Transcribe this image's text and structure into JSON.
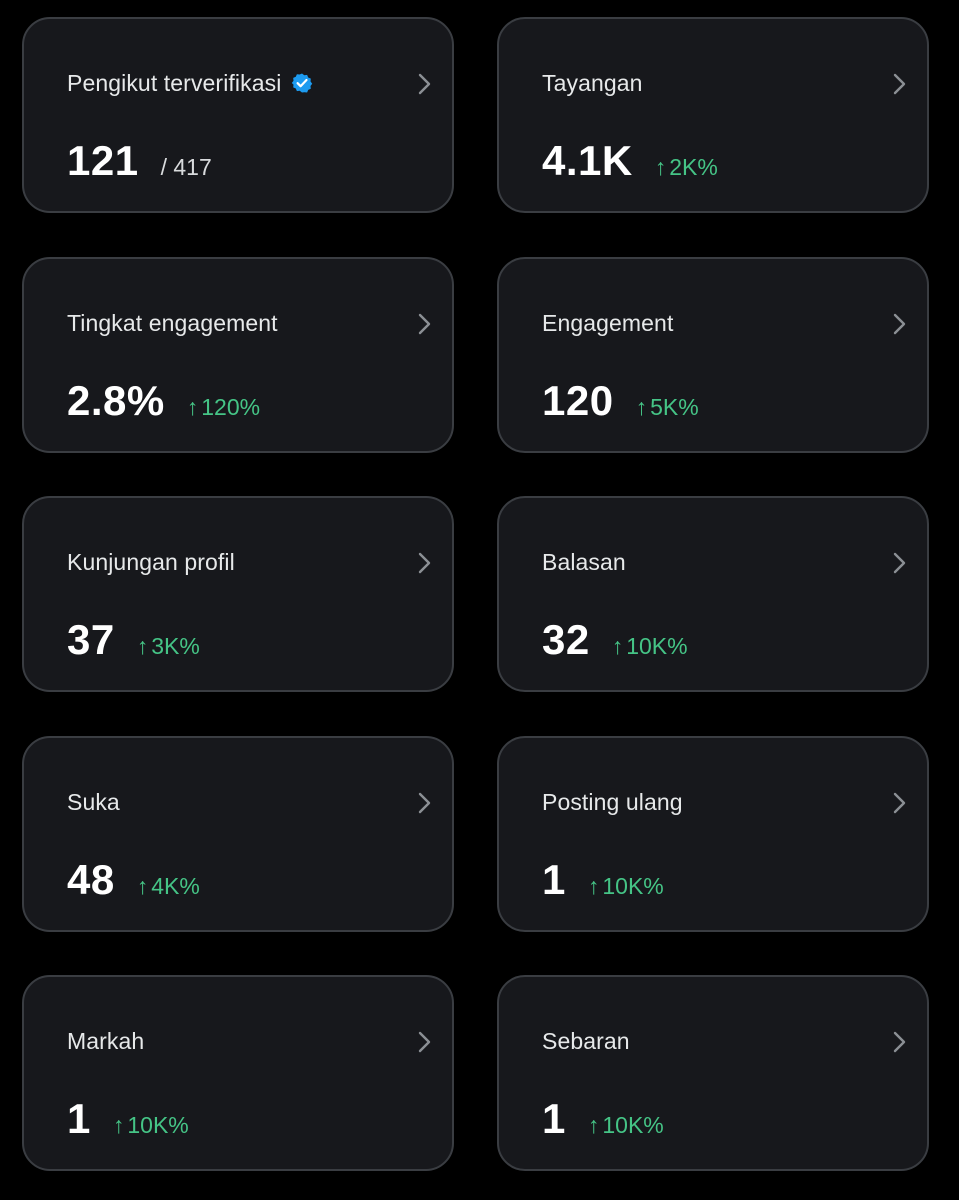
{
  "cards": [
    {
      "title": "Pengikut terverifikasi",
      "value": "121",
      "sub": "/ 417",
      "verified_icon": "verified-badge-icon",
      "verified_color": "#1d9bf0"
    },
    {
      "title": "Tayangan",
      "value": "4.1K",
      "arrow": "↑",
      "change": "2K%"
    },
    {
      "title": "Tingkat engagement",
      "value": "2.8%",
      "arrow": "↑",
      "change": "120%"
    },
    {
      "title": "Engagement",
      "value": "120",
      "arrow": "↑",
      "change": "5K%"
    },
    {
      "title": "Kunjungan profil",
      "value": "37",
      "arrow": "↑",
      "change": "3K%"
    },
    {
      "title": "Balasan",
      "value": "32",
      "arrow": "↑",
      "change": "10K%"
    },
    {
      "title": "Suka",
      "value": "48",
      "arrow": "↑",
      "change": "4K%"
    },
    {
      "title": "Posting ulang",
      "value": "1",
      "arrow": "↑",
      "change": "10K%"
    },
    {
      "title": "Markah",
      "value": "1",
      "arrow": "↑",
      "change": "10K%"
    },
    {
      "title": "Sebaran",
      "value": "1",
      "arrow": "↑",
      "change": "10K%"
    }
  ],
  "colors": {
    "background": "#000000",
    "card_background": "#17181c",
    "card_border": "#3a3d42",
    "positive_change": "#45c486",
    "title_text": "#e7e9ea",
    "value_text": "#ffffff"
  },
  "icons": {
    "chevron": "chevron-right-icon",
    "increase": "arrow-up-icon"
  }
}
